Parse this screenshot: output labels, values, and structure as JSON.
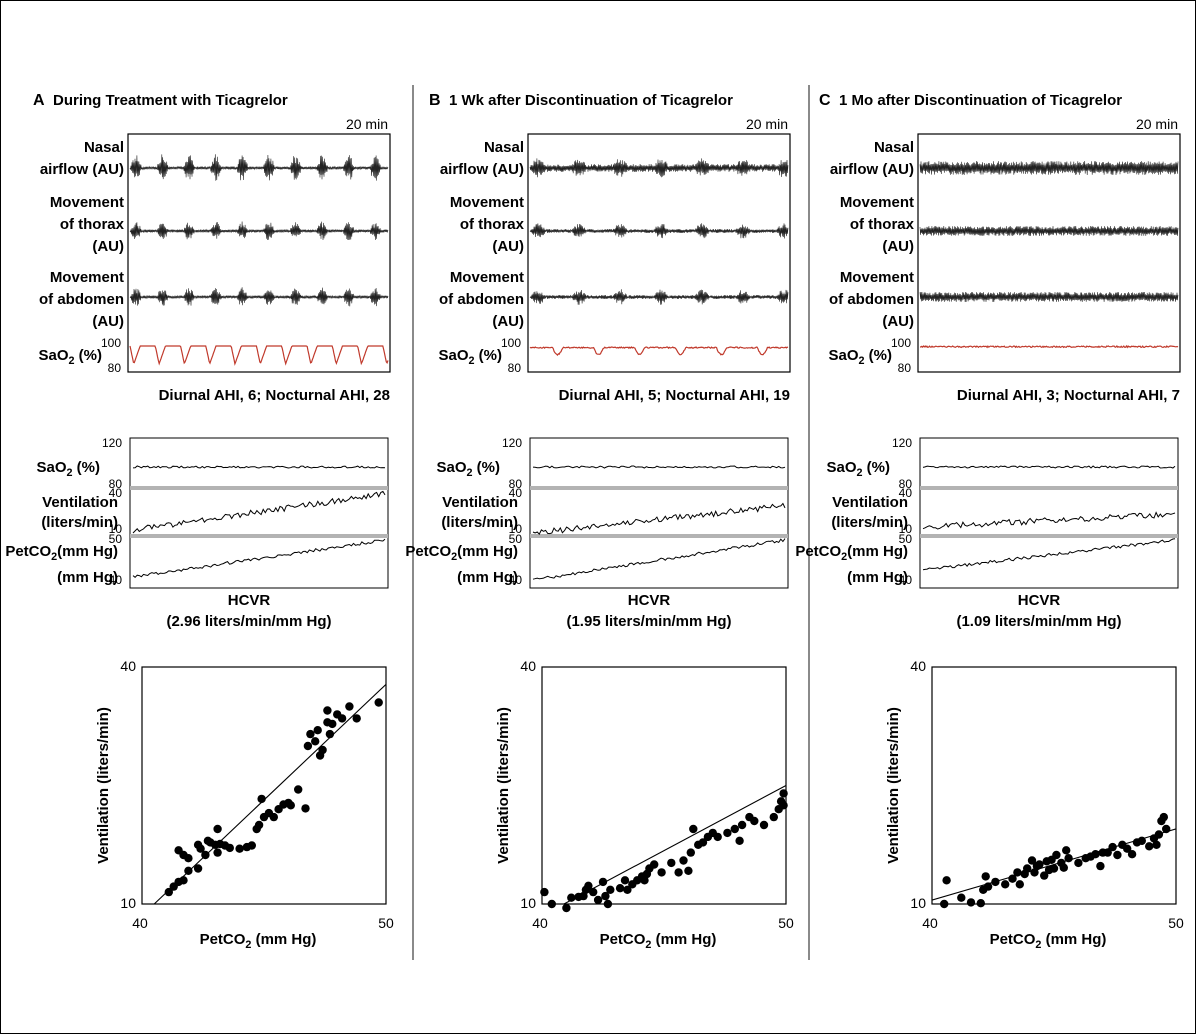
{
  "panels": [
    {
      "letter": "A",
      "title": "During Treatment with Ticagrelor",
      "time_label": "20 min",
      "traces": [
        {
          "label": [
            "Nasal",
            "airflow (AU)"
          ]
        },
        {
          "label": [
            "Movement",
            "of thorax",
            "(AU)"
          ]
        },
        {
          "label": [
            "Movement",
            "of abdomen",
            "(AU)"
          ]
        }
      ],
      "sao2_label": "SaO",
      "sao2_sub": "2",
      "sao2_unit": " (%)",
      "sao2_ticks": [
        "100",
        "80"
      ],
      "ahi": "Diurnal AHI, 6; Nocturnal AHI, 28",
      "hcvr_labels": {
        "sao2": [
          "SaO",
          "2",
          " (%)"
        ],
        "vent": [
          "Ventilation",
          "(liters/min)"
        ],
        "pet": [
          "PetCO",
          "2",
          "(mm Hg)"
        ],
        "ticks": [
          "120",
          "80",
          "40",
          "10",
          "50",
          "40"
        ]
      },
      "hcvr_title": "HCVR",
      "hcvr_value": "(2.96 liters/min/mm Hg)"
    },
    {
      "letter": "B",
      "title": "1 Wk after Discontinuation of Ticagrelor",
      "time_label": "20 min",
      "traces": [
        {
          "label": [
            "Nasal",
            "airflow (AU)"
          ]
        },
        {
          "label": [
            "Movement",
            "of thorax",
            "(AU)"
          ]
        },
        {
          "label": [
            "Movement",
            "of abdomen",
            "(AU)"
          ]
        }
      ],
      "sao2_label": "SaO",
      "sao2_sub": "2",
      "sao2_unit": " (%)",
      "sao2_ticks": [
        "100",
        "80"
      ],
      "ahi": "Diurnal AHI, 5; Nocturnal AHI, 19",
      "hcvr_labels": {
        "sao2": [
          "SaO",
          "2",
          " (%)"
        ],
        "vent": [
          "Ventilation",
          "(liters/min)"
        ],
        "pet": [
          "PetCO",
          "2",
          "(mm Hg)"
        ],
        "ticks": [
          "120",
          "80",
          "40",
          "10",
          "50",
          "40"
        ]
      },
      "hcvr_title": "HCVR",
      "hcvr_value": "(1.95 liters/min/mm Hg)"
    },
    {
      "letter": "C",
      "title": "1 Mo after Discontinuation of Ticagrelor",
      "time_label": "20 min",
      "traces": [
        {
          "label": [
            "Nasal",
            "airflow (AU)"
          ]
        },
        {
          "label": [
            "Movement",
            "of thorax",
            "(AU)"
          ]
        },
        {
          "label": [
            "Movement",
            "of abdomen",
            "(AU)"
          ]
        }
      ],
      "sao2_label": "SaO",
      "sao2_sub": "2",
      "sao2_unit": " (%)",
      "sao2_ticks": [
        "100",
        "80"
      ],
      "ahi": "Diurnal AHI, 3; Nocturnal AHI, 7",
      "hcvr_labels": {
        "sao2": [
          "SaO",
          "2",
          " (%)"
        ],
        "vent": [
          "Ventilation",
          "(liters/min)"
        ],
        "pet": [
          "PetCO",
          "2",
          "(mm Hg)"
        ],
        "ticks": [
          "120",
          "80",
          "40",
          "10",
          "50",
          "40"
        ]
      },
      "hcvr_title": "HCVR",
      "hcvr_value": "(1.09 liters/min/mm Hg)"
    }
  ],
  "colors": {
    "sao2_trace": "#c0392b",
    "band": "#b3b3b3",
    "ink": "#000000"
  },
  "chart_data": [
    {
      "type": "scatter",
      "panel": "A",
      "xlabel": "PetCO2 (mm Hg)",
      "xlabel_parts": [
        "PetCO",
        "2",
        " (mm Hg)"
      ],
      "ylabel": "Ventilation (liters/min)",
      "xlim": [
        40,
        50
      ],
      "ylim": [
        10,
        40
      ],
      "xticks": [
        "40",
        "50"
      ],
      "yticks": [
        "40",
        "10"
      ],
      "fit_line": [
        [
          40.5,
          10.0
        ],
        [
          50.0,
          37.8
        ]
      ],
      "points": [
        [
          41.1,
          11.5
        ],
        [
          41.3,
          12.2
        ],
        [
          41.5,
          12.8
        ],
        [
          41.7,
          13.0
        ],
        [
          41.9,
          14.2
        ],
        [
          41.5,
          16.8
        ],
        [
          41.7,
          16.2
        ],
        [
          41.9,
          15.8
        ],
        [
          42.3,
          14.5
        ],
        [
          42.3,
          17.5
        ],
        [
          42.4,
          17.0
        ],
        [
          42.6,
          16.2
        ],
        [
          42.7,
          18.0
        ],
        [
          42.8,
          17.8
        ],
        [
          43.0,
          17.5
        ],
        [
          43.1,
          19.5
        ],
        [
          43.1,
          16.5
        ],
        [
          43.2,
          17.6
        ],
        [
          43.4,
          17.4
        ],
        [
          43.6,
          17.1
        ],
        [
          44.0,
          17.0
        ],
        [
          44.3,
          17.2
        ],
        [
          44.5,
          17.4
        ],
        [
          44.7,
          19.5
        ],
        [
          44.8,
          20.0
        ],
        [
          44.9,
          23.3
        ],
        [
          45.0,
          21.0
        ],
        [
          45.2,
          21.5
        ],
        [
          45.4,
          21.0
        ],
        [
          45.6,
          22.0
        ],
        [
          45.8,
          22.6
        ],
        [
          46.0,
          22.8
        ],
        [
          46.1,
          22.5
        ],
        [
          46.4,
          24.5
        ],
        [
          46.7,
          22.1
        ],
        [
          46.8,
          30.0
        ],
        [
          46.9,
          31.5
        ],
        [
          47.1,
          30.6
        ],
        [
          47.2,
          32.0
        ],
        [
          47.3,
          28.8
        ],
        [
          47.4,
          29.5
        ],
        [
          47.6,
          33.0
        ],
        [
          47.6,
          34.5
        ],
        [
          47.7,
          31.5
        ],
        [
          47.8,
          32.8
        ],
        [
          48.0,
          34.0
        ],
        [
          48.2,
          33.5
        ],
        [
          48.5,
          35.0
        ],
        [
          48.8,
          33.5
        ],
        [
          49.7,
          35.5
        ]
      ]
    },
    {
      "type": "scatter",
      "panel": "B",
      "xlabel": "PetCO2 (mm Hg)",
      "xlabel_parts": [
        "PetCO",
        "2",
        " (mm Hg)"
      ],
      "ylabel": "Ventilation (liters/min)",
      "xlim": [
        40,
        50
      ],
      "ylim": [
        10,
        40
      ],
      "xticks": [
        "40",
        "50"
      ],
      "yticks": [
        "40",
        "10"
      ],
      "fit_line": [
        [
          40.9,
          10.0
        ],
        [
          50.0,
          25.0
        ]
      ],
      "points": [
        [
          40.1,
          11.5
        ],
        [
          40.4,
          10.0
        ],
        [
          41.0,
          9.5
        ],
        [
          41.2,
          10.8
        ],
        [
          41.5,
          10.9
        ],
        [
          41.7,
          11.0
        ],
        [
          41.8,
          11.8
        ],
        [
          41.9,
          12.3
        ],
        [
          42.1,
          11.5
        ],
        [
          42.3,
          10.5
        ],
        [
          42.5,
          12.8
        ],
        [
          42.6,
          11.0
        ],
        [
          42.7,
          10.0
        ],
        [
          42.8,
          11.8
        ],
        [
          43.2,
          12.0
        ],
        [
          43.4,
          13.0
        ],
        [
          43.5,
          11.8
        ],
        [
          43.7,
          12.5
        ],
        [
          43.9,
          13.0
        ],
        [
          44.1,
          13.5
        ],
        [
          44.2,
          13.0
        ],
        [
          44.3,
          13.8
        ],
        [
          44.4,
          14.5
        ],
        [
          44.6,
          15.0
        ],
        [
          44.9,
          14.0
        ],
        [
          45.3,
          15.2
        ],
        [
          45.6,
          14.0
        ],
        [
          45.8,
          15.5
        ],
        [
          46.0,
          14.2
        ],
        [
          46.1,
          16.5
        ],
        [
          46.2,
          19.5
        ],
        [
          46.4,
          17.5
        ],
        [
          46.6,
          17.8
        ],
        [
          46.8,
          18.5
        ],
        [
          47.0,
          19.0
        ],
        [
          47.2,
          18.5
        ],
        [
          47.6,
          19.0
        ],
        [
          47.9,
          19.5
        ],
        [
          48.1,
          18.0
        ],
        [
          48.2,
          20.0
        ],
        [
          48.5,
          21.0
        ],
        [
          48.7,
          20.5
        ],
        [
          49.1,
          20.0
        ],
        [
          49.5,
          21.0
        ],
        [
          49.7,
          22.0
        ],
        [
          49.8,
          23.0
        ],
        [
          49.9,
          24.0
        ],
        [
          49.9,
          22.5
        ]
      ]
    },
    {
      "type": "scatter",
      "panel": "C",
      "xlabel": "PetCO2 (mm Hg)",
      "xlabel_parts": [
        "PetCO",
        "2",
        " (mm Hg)"
      ],
      "ylabel": "Ventilation (liters/min)",
      "xlim": [
        40,
        50
      ],
      "ylim": [
        10,
        40
      ],
      "xticks": [
        "40",
        "50"
      ],
      "yticks": [
        "40",
        "10"
      ],
      "fit_line": [
        [
          40.0,
          10.5
        ],
        [
          50.0,
          19.5
        ]
      ],
      "points": [
        [
          40.5,
          10.0
        ],
        [
          40.6,
          13.0
        ],
        [
          41.2,
          10.8
        ],
        [
          41.6,
          10.2
        ],
        [
          42.0,
          10.1
        ],
        [
          42.1,
          11.8
        ],
        [
          42.3,
          12.2
        ],
        [
          42.2,
          13.5
        ],
        [
          42.6,
          12.8
        ],
        [
          43.0,
          12.5
        ],
        [
          43.3,
          13.2
        ],
        [
          43.5,
          14.0
        ],
        [
          43.6,
          12.5
        ],
        [
          43.8,
          13.8
        ],
        [
          43.9,
          14.5
        ],
        [
          44.1,
          15.5
        ],
        [
          44.2,
          14.0
        ],
        [
          44.3,
          14.8
        ],
        [
          44.4,
          15.0
        ],
        [
          44.6,
          13.6
        ],
        [
          44.7,
          15.4
        ],
        [
          44.8,
          14.3
        ],
        [
          44.9,
          15.6
        ],
        [
          45.0,
          14.5
        ],
        [
          45.1,
          16.2
        ],
        [
          45.3,
          15.2
        ],
        [
          45.4,
          14.6
        ],
        [
          45.5,
          16.8
        ],
        [
          45.6,
          15.8
        ],
        [
          46.0,
          15.2
        ],
        [
          46.3,
          15.8
        ],
        [
          46.5,
          16.0
        ],
        [
          46.7,
          16.3
        ],
        [
          46.9,
          14.8
        ],
        [
          47.0,
          16.5
        ],
        [
          47.2,
          16.5
        ],
        [
          47.4,
          17.2
        ],
        [
          47.6,
          16.2
        ],
        [
          47.8,
          17.5
        ],
        [
          48.0,
          17.0
        ],
        [
          48.2,
          16.3
        ],
        [
          48.4,
          17.8
        ],
        [
          48.6,
          18.0
        ],
        [
          48.9,
          17.3
        ],
        [
          49.1,
          18.3
        ],
        [
          49.2,
          17.5
        ],
        [
          49.3,
          18.8
        ],
        [
          49.4,
          20.5
        ],
        [
          49.5,
          21.0
        ],
        [
          49.6,
          19.5
        ]
      ]
    }
  ]
}
